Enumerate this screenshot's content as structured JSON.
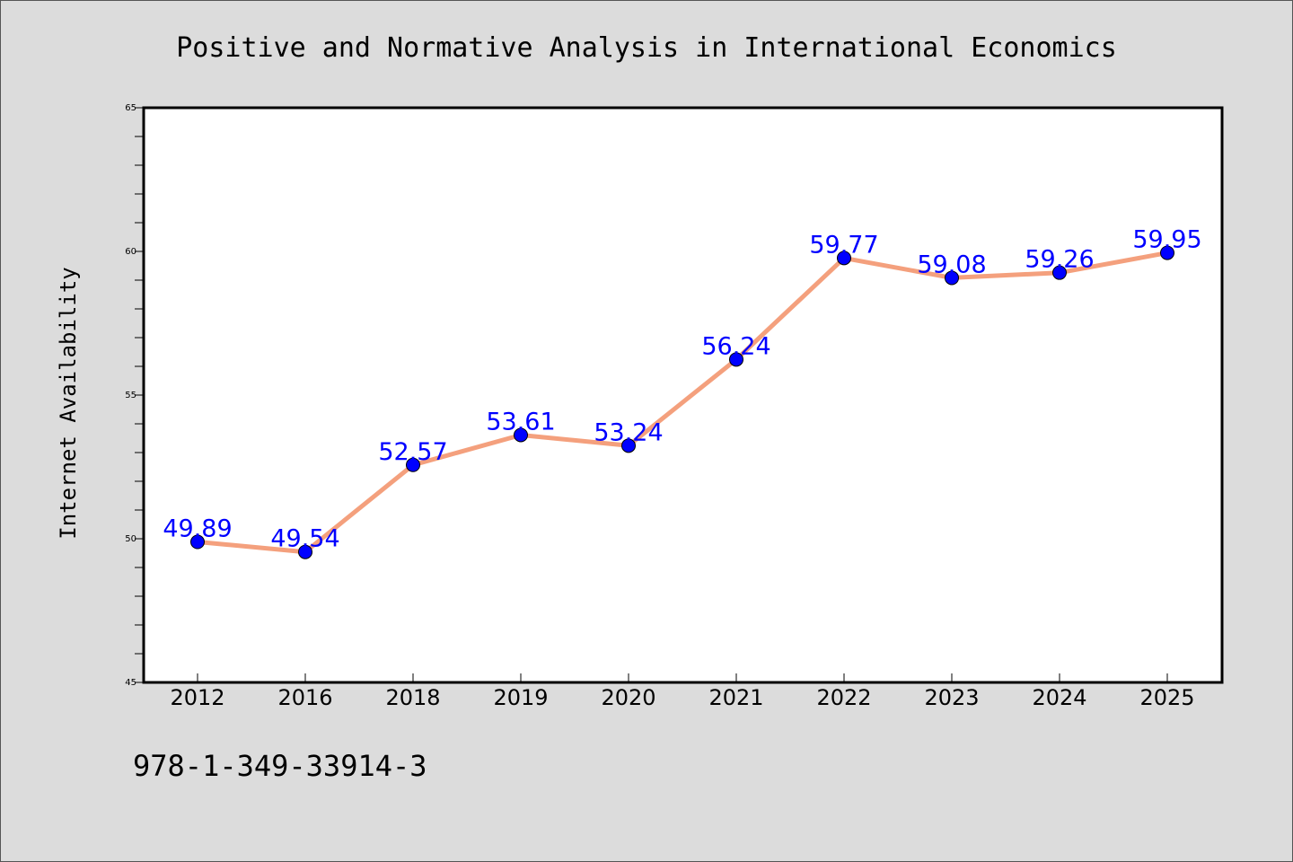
{
  "chart_data": {
    "type": "line",
    "title": "Positive and Normative Analysis in International Economics",
    "xlabel": "",
    "ylabel": "Internet Availability",
    "categories": [
      "2012",
      "2016",
      "2018",
      "2019",
      "2020",
      "2021",
      "2022",
      "2023",
      "2024",
      "2025"
    ],
    "series": [
      {
        "values": [
          49.89,
          49.54,
          52.57,
          53.61,
          53.24,
          56.24,
          59.77,
          59.08,
          59.26,
          59.95
        ]
      }
    ],
    "data_labels": [
      "49.89",
      "49.54",
      "52.57",
      "53.61",
      "53.24",
      "56.24",
      "59.77",
      "59.08",
      "59.26",
      "59.95"
    ],
    "ylim": [
      45,
      65
    ],
    "yticks": [
      "45",
      "50",
      "55",
      "60",
      "65"
    ],
    "grid": false,
    "legend": "none",
    "colors": {
      "line": "#f4a07d",
      "marker": "#0000ff",
      "label": "#0000ff",
      "plot_bg": "#ffffff",
      "page_bg": "#dcdcdc"
    }
  },
  "footer": {
    "isbn": "978-1-349-33914-3"
  }
}
